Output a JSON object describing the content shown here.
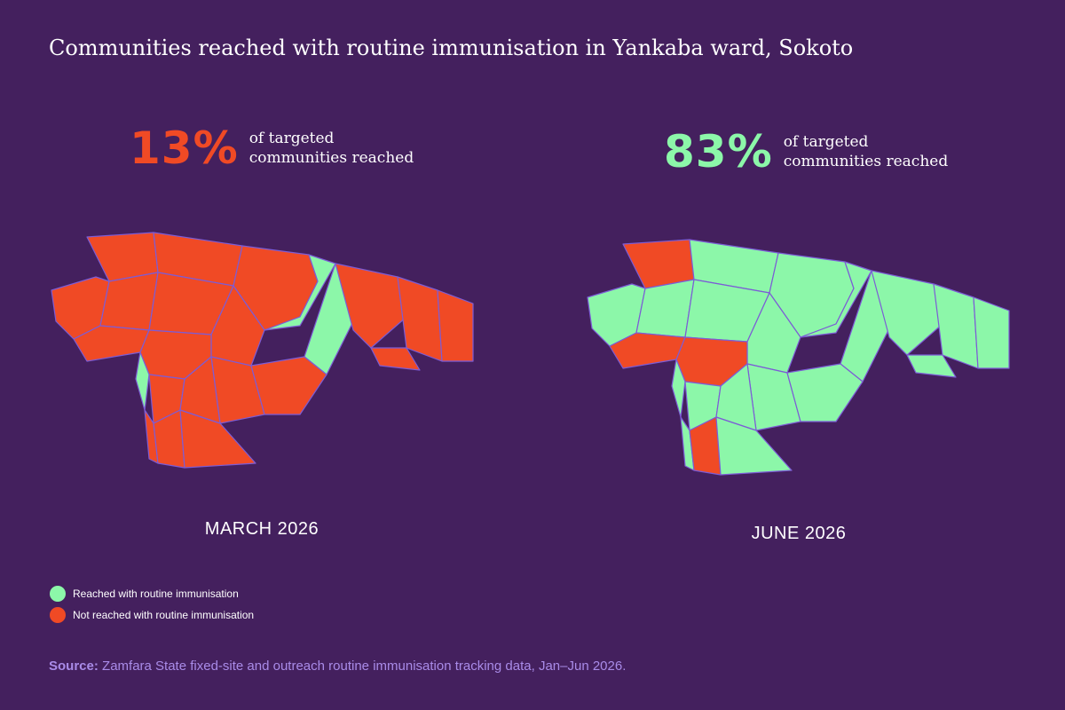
{
  "title": "Communities reached with routine immunisation in Yankaba ward, Sokoto",
  "colors": {
    "background": "#44205e",
    "reached": "#8cf7a9",
    "not_reached": "#f04a25",
    "border": "#7c5cd6",
    "source_text": "#a98be8"
  },
  "panels": [
    {
      "period": "MARCH 2026",
      "percent": "13%",
      "desc_line1": "of targeted",
      "desc_line2": "communities reached",
      "reached_count": 3,
      "total_count": 23
    },
    {
      "period": "JUNE 2026",
      "percent": "83%",
      "desc_line1": "of targeted",
      "desc_line2": "communities reached",
      "reached_count": 19,
      "total_count": 23
    }
  ],
  "legend": {
    "reached": "Reached with routine immunisation",
    "not_reached": "Not reached with routine immunisation"
  },
  "source": {
    "label": "Source:",
    "text": " Zamfara State fixed-site and outreach routine immunisation tracking data, Jan–Jun 2026."
  }
}
